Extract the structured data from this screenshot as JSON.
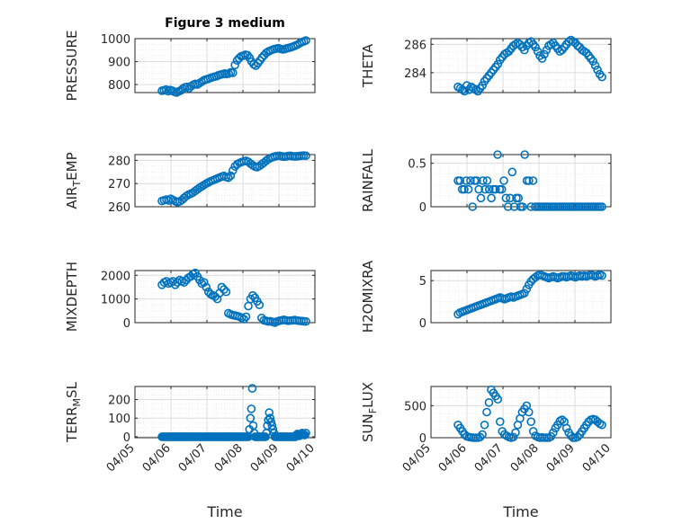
{
  "figure_title": "Figure 3 medium",
  "chart_data": [
    {
      "id": "pressure",
      "type": "scatter",
      "title": "Figure 3 medium",
      "ylabel": "PRESSURE",
      "ylabel_sub": "",
      "ylabel_tail": "",
      "xlim": [
        "04/05",
        "04/10"
      ],
      "ylim": [
        765,
        1000
      ],
      "yticks": [
        800,
        900,
        1000
      ],
      "yticklabels": [
        "800",
        "900",
        "1000"
      ],
      "xticklabels": [],
      "xlabel": "",
      "grid": true,
      "x_start": "04/05 18:00",
      "x_end": "04/09 18:00",
      "values": [
        773,
        775,
        778,
        771,
        776,
        773,
        768,
        765,
        770,
        774,
        782,
        788,
        790,
        784,
        793,
        799,
        803,
        800,
        806,
        812,
        818,
        822,
        824,
        828,
        831,
        834,
        836,
        840,
        843,
        845,
        848,
        846,
        848,
        853,
        851,
        885,
        905,
        915,
        923,
        926,
        930,
        928,
        916,
        900,
        888,
        882,
        893,
        905,
        918,
        928,
        938,
        944,
        948,
        952,
        955,
        957,
        958,
        955,
        953,
        955,
        958,
        960,
        963,
        966,
        970,
        974,
        980,
        985,
        988,
        992
      ]
    },
    {
      "id": "theta",
      "type": "scatter",
      "title": "",
      "ylabel": "THETA",
      "ylabel_sub": "",
      "ylabel_tail": "",
      "xlim": [
        "04/05",
        "04/10"
      ],
      "ylim": [
        282.6,
        286.4
      ],
      "yticks": [
        284,
        286
      ],
      "yticklabels": [
        "284",
        "286"
      ],
      "xticklabels": [],
      "xlabel": "",
      "grid": true,
      "x_start": "04/05 18:00",
      "x_end": "04/09 18:00",
      "values": [
        283.0,
        282.9,
        282.8,
        282.7,
        283.1,
        282.8,
        283.0,
        282.9,
        282.8,
        282.7,
        282.9,
        283.1,
        283.4,
        283.6,
        283.8,
        284.0,
        284.2,
        284.4,
        284.6,
        284.9,
        285.1,
        285.3,
        285.4,
        285.5,
        285.7,
        285.9,
        286.0,
        286.1,
        286.0,
        285.8,
        285.6,
        285.9,
        286.1,
        286.2,
        286.0,
        285.8,
        285.5,
        285.2,
        285.0,
        285.3,
        285.6,
        285.9,
        286.0,
        286.1,
        285.9,
        285.7,
        285.5,
        285.6,
        285.8,
        286.0,
        286.2,
        286.3,
        286.2,
        286.1,
        285.9,
        285.8,
        285.6,
        285.5,
        285.4,
        285.2,
        285.0,
        284.8,
        284.5,
        284.2,
        283.9,
        283.7
      ]
    },
    {
      "id": "air_temp",
      "type": "scatter",
      "title": "",
      "ylabel": "AIR",
      "ylabel_sub": "T",
      "ylabel_tail": "EMP",
      "xlim": [
        "04/05",
        "04/10"
      ],
      "ylim": [
        260,
        282.5
      ],
      "yticks": [
        260,
        270,
        280
      ],
      "yticklabels": [
        "260",
        "270",
        "280"
      ],
      "xticklabels": [],
      "xlabel": "",
      "grid": true,
      "x_start": "04/05 18:00",
      "x_end": "04/09 18:00",
      "values": [
        262.5,
        262.8,
        263.1,
        262.7,
        263.4,
        262.9,
        262.4,
        262.0,
        262.3,
        262.9,
        263.8,
        264.6,
        265.2,
        265.6,
        266.1,
        266.8,
        267.5,
        268.2,
        268.8,
        269.4,
        270.0,
        270.5,
        271.0,
        271.4,
        271.8,
        272.2,
        272.6,
        273.0,
        273.3,
        272.8,
        272.5,
        273.4,
        275.6,
        277.4,
        278.4,
        278.9,
        279.3,
        279.6,
        279.8,
        279.4,
        278.6,
        277.9,
        277.3,
        277.1,
        277.6,
        278.3,
        279.0,
        279.8,
        280.5,
        281.0,
        281.4,
        281.7,
        281.9,
        282.0,
        281.8,
        281.6,
        281.7,
        281.9,
        282.0,
        281.8,
        281.7,
        281.8,
        281.9,
        282.0,
        282.1,
        282.0
      ]
    },
    {
      "id": "rainfall",
      "type": "scatter",
      "title": "",
      "ylabel": "RAINFALL",
      "ylabel_sub": "",
      "ylabel_tail": "",
      "xlim": [
        "04/05",
        "04/10"
      ],
      "ylim": [
        0,
        0.6
      ],
      "yticks": [
        0,
        0.5
      ],
      "yticklabels": [
        "0",
        "0.5"
      ],
      "xticklabels": [],
      "xlabel": "",
      "grid": true,
      "x_start": "04/05 18:00",
      "x_end": "04/09 18:00",
      "values": [
        0.3,
        0.3,
        0.2,
        0.2,
        0.3,
        0.2,
        0.3,
        0.0,
        0.3,
        0.3,
        0.2,
        0.1,
        0.3,
        0.2,
        0.3,
        0.2,
        0.1,
        0.2,
        0.2,
        0.6,
        0.2,
        0.2,
        0.3,
        0.1,
        0.0,
        0.1,
        0.4,
        0.0,
        0.1,
        0.1,
        0.0,
        0.0,
        0.6,
        0.3,
        0.3,
        0.0,
        0.3,
        0.0,
        0.0,
        0.0,
        0.0,
        0.0,
        0.0,
        0.0,
        0.0,
        0.0,
        0.0,
        0.0,
        0.0,
        0.0,
        0.0,
        0.0,
        0.0,
        0.0,
        0.0,
        0.0,
        0.0,
        0.0,
        0.0,
        0.0,
        0.0,
        0.0,
        0.0,
        0.0,
        0.0,
        0.0,
        0.0,
        0.0,
        0.0,
        0.0
      ]
    },
    {
      "id": "mixdepth",
      "type": "scatter",
      "title": "",
      "ylabel": "MIXDEPTH",
      "ylabel_sub": "",
      "ylabel_tail": "",
      "xlim": [
        "04/05",
        "04/10"
      ],
      "ylim": [
        0,
        2200
      ],
      "yticks": [
        0,
        1000,
        2000
      ],
      "yticklabels": [
        "0",
        "1000",
        "2000"
      ],
      "xticklabels": [],
      "xlabel": "",
      "grid": true,
      "x_start": "04/05 18:00",
      "x_end": "04/09 18:00",
      "values": [
        1600,
        1700,
        1750,
        1650,
        1700,
        1750,
        1600,
        1700,
        1800,
        1750,
        1700,
        1800,
        1900,
        1950,
        2050,
        2100,
        1950,
        1800,
        1650,
        1700,
        1500,
        1300,
        1200,
        1150,
        1100,
        1000,
        1250,
        1500,
        1400,
        1300,
        400,
        350,
        320,
        300,
        280,
        250,
        200,
        150,
        250,
        700,
        1000,
        1150,
        1050,
        900,
        750,
        200,
        100,
        80,
        50,
        60,
        30,
        0,
        50,
        80,
        100,
        120,
        100,
        80,
        90,
        100,
        110,
        90,
        80,
        70,
        60,
        50
      ]
    },
    {
      "id": "h2omixra",
      "type": "scatter",
      "title": "",
      "ylabel": "H2OMIXRA",
      "ylabel_sub": "",
      "ylabel_tail": "",
      "xlim": [
        "04/05",
        "04/10"
      ],
      "ylim": [
        0,
        6.2
      ],
      "yticks": [
        0,
        5
      ],
      "yticklabels": [
        "0",
        "5"
      ],
      "xticklabels": [],
      "xlabel": "",
      "grid": true,
      "x_start": "04/05 18:00",
      "x_end": "04/09 18:00",
      "values": [
        1.0,
        1.2,
        1.3,
        1.4,
        1.5,
        1.6,
        1.7,
        1.8,
        1.9,
        2.0,
        2.1,
        2.2,
        2.3,
        2.4,
        2.5,
        2.6,
        2.7,
        2.8,
        2.9,
        3.0,
        2.9,
        2.8,
        2.9,
        3.0,
        3.1,
        3.0,
        3.1,
        3.2,
        3.3,
        3.4,
        3.5,
        4.0,
        4.5,
        4.9,
        5.2,
        5.4,
        5.6,
        5.7,
        5.6,
        5.5,
        5.4,
        5.3,
        5.4,
        5.5,
        5.4,
        5.3,
        5.4,
        5.5,
        5.5,
        5.4,
        5.5,
        5.6,
        5.5,
        5.4,
        5.5,
        5.6,
        5.5,
        5.6,
        5.5,
        5.6,
        5.7,
        5.6,
        5.5,
        5.6,
        5.7,
        5.6
      ]
    },
    {
      "id": "terr_msl",
      "type": "scatter",
      "title": "",
      "ylabel": "TERR",
      "ylabel_sub": "M",
      "ylabel_tail": "SL",
      "xlim": [
        "04/05",
        "04/10"
      ],
      "ylim": [
        -5,
        270
      ],
      "yticks": [
        0,
        100,
        200
      ],
      "yticklabels": [
        "0",
        "100",
        "200"
      ],
      "xticklabels": [
        "04/05",
        "04/06",
        "04/07",
        "04/08",
        "04/09",
        "04/10"
      ],
      "xlabel": "Time",
      "grid": true,
      "x_start": "04/05 18:00",
      "x_end": "04/09 18:00",
      "values": [
        0,
        0,
        0,
        0,
        0,
        0,
        0,
        0,
        0,
        0,
        0,
        0,
        0,
        0,
        0,
        0,
        0,
        0,
        0,
        0,
        0,
        0,
        0,
        0,
        0,
        0,
        0,
        0,
        0,
        0,
        0,
        0,
        0,
        0,
        0,
        0,
        0,
        0,
        0,
        0,
        0,
        0,
        0,
        0,
        0,
        0,
        0,
        0,
        0,
        0,
        0,
        0,
        0,
        0,
        0,
        0,
        0,
        0,
        0,
        0,
        0,
        0,
        0,
        0,
        0,
        0,
        0,
        0,
        0,
        0,
        0,
        0,
        0,
        0,
        0,
        0,
        0,
        0,
        0,
        0,
        0,
        0,
        0,
        0,
        0,
        0,
        0,
        0,
        0,
        0,
        0,
        0,
        0,
        40,
        100,
        150,
        260,
        60,
        20,
        0,
        0,
        0,
        0,
        0,
        0,
        0,
        0,
        0,
        0,
        0,
        0,
        20,
        60,
        90,
        130,
        100,
        80,
        60,
        40,
        20,
        0,
        0,
        0,
        0,
        0,
        0,
        0,
        0,
        0,
        0,
        0,
        0,
        0,
        0,
        0,
        0,
        0,
        0,
        0,
        0,
        0,
        0,
        0,
        10,
        15,
        10,
        5,
        10,
        15,
        20,
        15,
        10,
        10,
        20
      ]
    },
    {
      "id": "sun_flux",
      "type": "scatter",
      "title": "",
      "ylabel": "SUN",
      "ylabel_sub": "F",
      "ylabel_tail": "LUX",
      "xlim": [
        "04/05",
        "04/10"
      ],
      "ylim": [
        0,
        800
      ],
      "yticks": [
        0,
        500
      ],
      "yticklabels": [
        "0",
        "500"
      ],
      "xticklabels": [
        "04/05",
        "04/06",
        "04/07",
        "04/08",
        "04/09",
        "04/10"
      ],
      "xlabel": "Time",
      "grid": true,
      "x_start": "04/05 18:00",
      "x_end": "04/09 18:00",
      "values": [
        200,
        150,
        100,
        50,
        20,
        10,
        5,
        0,
        0,
        0,
        10,
        50,
        200,
        400,
        550,
        750,
        700,
        650,
        600,
        250,
        100,
        50,
        30,
        10,
        0,
        10,
        80,
        200,
        300,
        400,
        450,
        500,
        400,
        250,
        100,
        30,
        10,
        0,
        5,
        0,
        0,
        0,
        20,
        80,
        150,
        200,
        260,
        280,
        250,
        150,
        80,
        30,
        0,
        0,
        10,
        50,
        100,
        150,
        200,
        250,
        280,
        290,
        280,
        250,
        220,
        200
      ]
    }
  ]
}
